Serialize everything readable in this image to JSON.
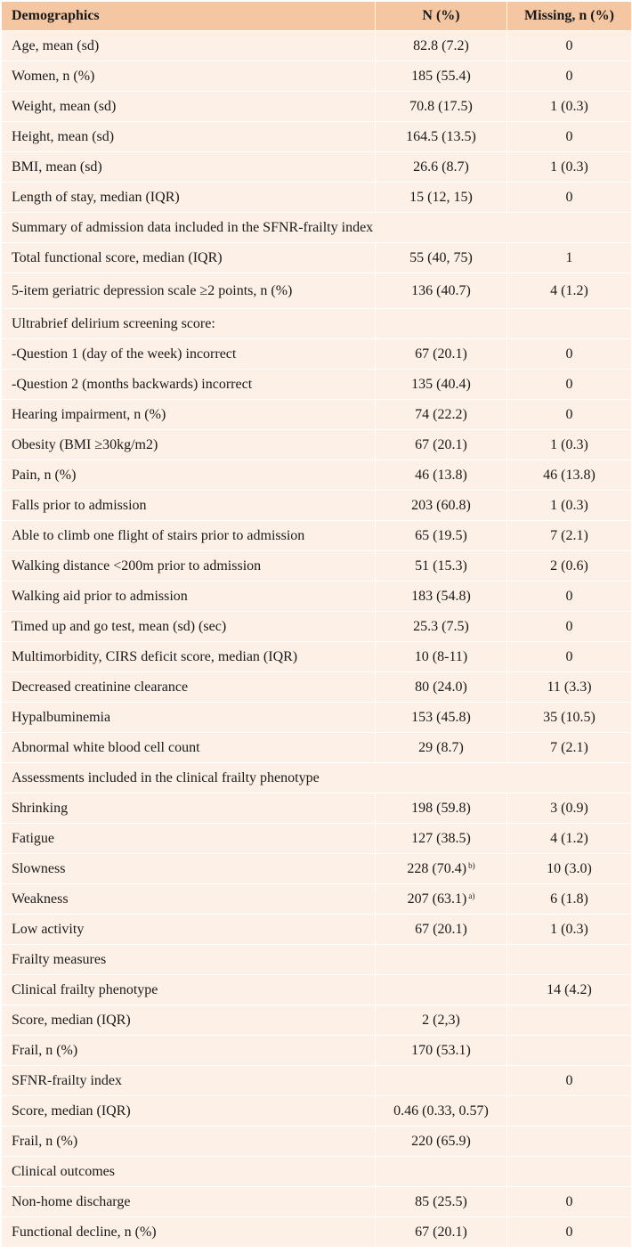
{
  "table": {
    "headers": [
      "Demographics",
      "N (%)",
      "Missing, n (%)"
    ],
    "rows": [
      {
        "label": "Age, mean (sd)",
        "n": "82.8 (7.2)",
        "missing": "0"
      },
      {
        "label": "Women, n (%)",
        "n": "185 (55.4)",
        "missing": "0"
      },
      {
        "label": "Weight, mean (sd)",
        "n": "70.8 (17.5)",
        "missing": "1 (0.3)"
      },
      {
        "label": "Height, mean (sd)",
        "n": "164.5 (13.5)",
        "missing": "0"
      },
      {
        "label": "BMI, mean (sd)",
        "n": "26.6 (8.7)",
        "missing": "1 (0.3)"
      },
      {
        "label": "Length of stay, median (IQR)",
        "n": "15 (12, 15)",
        "missing": "0"
      },
      {
        "label": "Summary of admission data included in the SFNR-frailty index",
        "section": true
      },
      {
        "label": "Total functional score, median (IQR)",
        "n": "55 (40, 75)",
        "missing": "1"
      },
      {
        "label": "5-item geriatric depression scale ≥2 points, n (%)",
        "n": "136 (40.7)",
        "missing": "4 (1.2)",
        "tall": true
      },
      {
        "label": "Ultrabrief delirium screening score:",
        "n": "",
        "missing": ""
      },
      {
        "label": "-Question 1 (day of the week) incorrect",
        "n": "67 (20.1)",
        "missing": "0"
      },
      {
        "label": "-Question 2 (months backwards) incorrect",
        "n": "135 (40.4)",
        "missing": "0"
      },
      {
        "label": "Hearing impairment, n (%)",
        "n": "74 (22.2)",
        "missing": "0"
      },
      {
        "label": "Obesity (BMI ≥30kg/m2)",
        "n": "67 (20.1)",
        "missing": "1 (0.3)"
      },
      {
        "label": "Pain, n (%)",
        "n": "46 (13.8)",
        "missing": "46 (13.8)"
      },
      {
        "label": "Falls prior to admission",
        "n": "203 (60.8)",
        "missing": "1 (0.3)"
      },
      {
        "label": "Able to climb one flight of stairs prior to admission",
        "n": "65 (19.5)",
        "missing": "7 (2.1)"
      },
      {
        "label": "Walking distance <200m prior to admission",
        "n": "51 (15.3)",
        "missing": "2 (0.6)"
      },
      {
        "label": "Walking aid prior to admission",
        "n": "183 (54.8)",
        "missing": "0"
      },
      {
        "label": "Timed up and go test, mean (sd) (sec)",
        "n": "25.3 (7.5)",
        "missing": "0"
      },
      {
        "label": "Multimorbidity, CIRS deficit score, median (IQR)",
        "n": "10 (8-11)",
        "missing": "0"
      },
      {
        "label": "Decreased creatinine clearance",
        "n": "80 (24.0)",
        "missing": "11 (3.3)"
      },
      {
        "label": "Hypalbuminemia",
        "n": "153 (45.8)",
        "missing": "35 (10.5)"
      },
      {
        "label": "Abnormal white blood cell count",
        "n": "29 (8.7)",
        "missing": "7 (2.1)"
      },
      {
        "label": "Assessments included in the clinical frailty phenotype",
        "section": true
      },
      {
        "label": "Shrinking",
        "n": "198 (59.8)",
        "missing": "3 (0.9)"
      },
      {
        "label": "Fatigue",
        "n": "127 (38.5)",
        "missing": "4 (1.2)"
      },
      {
        "label": "Slowness",
        "n": "228 (70.4)",
        "sup": "b)",
        "missing": "10 (3.0)"
      },
      {
        "label": "Weakness",
        "n": "207 (63.1)",
        "sup": "a)",
        "missing": "6 (1.8)"
      },
      {
        "label": "Low activity",
        "n": "67 (20.1)",
        "missing": "1 (0.3)"
      },
      {
        "label": "Frailty measures",
        "n": "",
        "missing": ""
      },
      {
        "label": "Clinical frailty phenotype",
        "n": "",
        "missing": "14 (4.2)"
      },
      {
        "label": "Score, median (IQR)",
        "n": "2 (2,3)",
        "missing": ""
      },
      {
        "label": "Frail, n (%)",
        "n": "170 (53.1)",
        "missing": ""
      },
      {
        "label": "SFNR-frailty index",
        "n": "",
        "missing": "0"
      },
      {
        "label": "Score, median (IQR)",
        "n": "0.46 (0.33, 0.57)",
        "missing": ""
      },
      {
        "label": "Frail, n (%)",
        "n": "220 (65.9)",
        "missing": ""
      },
      {
        "label": "Clinical outcomes",
        "n": "",
        "missing": ""
      },
      {
        "label": "Non-home discharge",
        "n": "85 (25.5)",
        "missing": "0"
      },
      {
        "label": "Functional decline, n (%)",
        "n": "67 (20.1)",
        "missing": "0"
      }
    ]
  }
}
